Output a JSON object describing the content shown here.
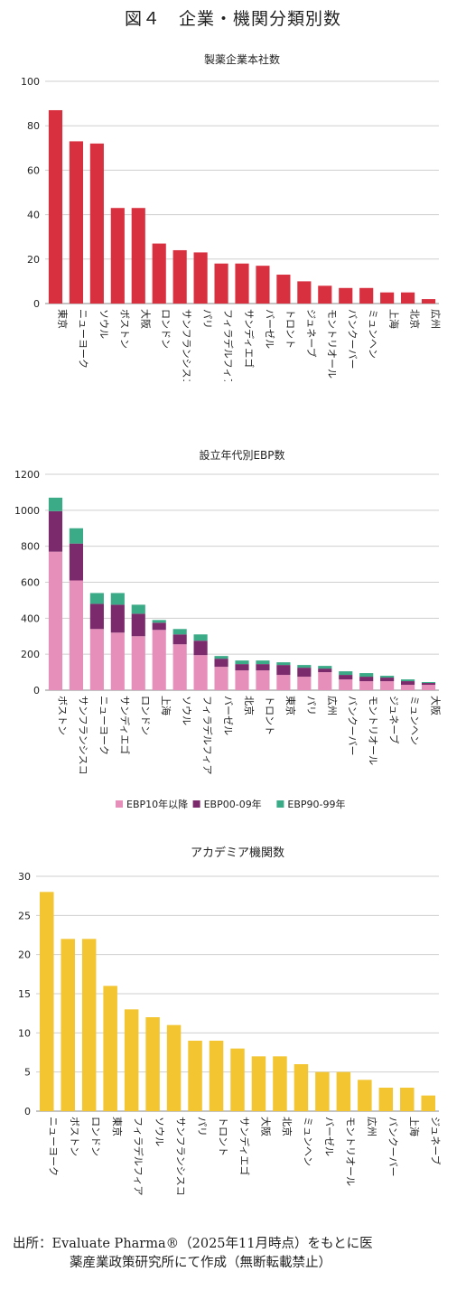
{
  "figure_title": "図４　企業・機関分類別数",
  "source": {
    "line1": "出所：Evaluate Pharma®（2025年11月時点）をもとに医",
    "line2": "薬産業政策研究所にて作成（無断転載禁止）"
  },
  "chart_data": [
    {
      "type": "bar",
      "title": "製薬企業本社数",
      "categories": [
        "東京",
        "ニューヨーク",
        "ソウル",
        "ボストン",
        "大阪",
        "ロンドン",
        "サンフランシスコ",
        "パリ",
        "フィラデルフィア",
        "サンディエゴ",
        "バーゼル",
        "トロント",
        "ジュネーブ",
        "モントリオール",
        "バンクーバー",
        "ミュンヘン",
        "上海",
        "北京",
        "広州"
      ],
      "values": [
        87,
        73,
        72,
        43,
        43,
        27,
        24,
        23,
        18,
        18,
        17,
        13,
        10,
        8,
        7,
        7,
        5,
        5,
        2
      ],
      "ylim": [
        0,
        100
      ],
      "yticks": [
        0,
        20,
        40,
        60,
        80,
        100
      ],
      "grid": true,
      "color": "#d9303f"
    },
    {
      "type": "bar",
      "stacked": true,
      "title": "設立年代別EBP数",
      "categories": [
        "ボストン",
        "サンフランシスコ",
        "ニューヨーク",
        "サンディエゴ",
        "ロンドン",
        "上海",
        "ソウル",
        "フィラデルフィア",
        "バーゼル",
        "北京",
        "トロント",
        "東京",
        "パリ",
        "広州",
        "バンクーバー",
        "モントリオール",
        "ジュネーブ",
        "ミュンヘン",
        "大阪"
      ],
      "series": [
        {
          "name": "EBP10年以降",
          "color": "#e78fbb",
          "values": [
            770,
            610,
            340,
            320,
            300,
            335,
            255,
            195,
            130,
            110,
            110,
            85,
            75,
            100,
            60,
            50,
            50,
            30,
            30
          ]
        },
        {
          "name": "EBP00-09年",
          "color": "#7b2a6b",
          "values": [
            225,
            205,
            140,
            155,
            125,
            40,
            55,
            80,
            45,
            35,
            35,
            55,
            50,
            20,
            25,
            25,
            20,
            20,
            10
          ]
        },
        {
          "name": "EBP90-99年",
          "color": "#3aaa87",
          "values": [
            75,
            85,
            60,
            65,
            50,
            15,
            30,
            35,
            15,
            20,
            20,
            15,
            15,
            15,
            20,
            20,
            10,
            10,
            5
          ]
        }
      ],
      "ylim": [
        0,
        1200
      ],
      "yticks": [
        0,
        200,
        400,
        600,
        800,
        1000,
        1200
      ],
      "grid": true,
      "legend": "bottom"
    },
    {
      "type": "bar",
      "title": "アカデミア機関数",
      "categories": [
        "ニューヨーク",
        "ボストン",
        "ロンドン",
        "東京",
        "フィラデルフィア",
        "ソウル",
        "サンフランシスコ",
        "パリ",
        "トロント",
        "サンディエゴ",
        "大阪",
        "北京",
        "ミュンヘン",
        "バーゼル",
        "モントリオール",
        "広州",
        "バンクーバー",
        "上海",
        "ジュネーブ"
      ],
      "values": [
        28,
        22,
        22,
        16,
        13,
        12,
        11,
        9,
        9,
        8,
        7,
        7,
        6,
        5,
        5,
        4,
        3,
        3,
        2
      ],
      "ylim": [
        0,
        30
      ],
      "yticks": [
        0,
        5,
        10,
        15,
        20,
        25,
        30
      ],
      "grid": true,
      "color": "#f2c531"
    }
  ]
}
